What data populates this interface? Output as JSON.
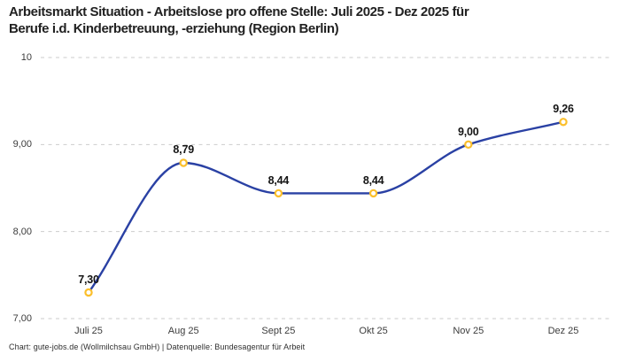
{
  "title": {
    "line1": "Arbeitsmarkt Situation - Arbeitslose pro offene Stelle: Juli 2025 - Dez 2025 für",
    "line2": "Berufe i.d. Kinderbetreuung, -erziehung (Region Berlin)",
    "full": "Arbeitsmarkt Situation - Arbeitslose pro offene Stelle: Juli 2025 - Dez 2025 für Berufe i.d. Kinderbetreuung, -erziehung (Region Berlin)"
  },
  "footer": "Chart: gute-jobs.de (Wollmilchsau GmbH) | Datenquelle: Bundesagentur für Arbeit",
  "chart_data": {
    "type": "line",
    "title": "Arbeitsmarkt Situation - Arbeitslose pro offene Stelle: Juli 2025 - Dez 2025 für Berufe i.d. Kinderbetreuung, -erziehung (Region Berlin)",
    "categories": [
      "Juli 25",
      "Aug 25",
      "Sept 25",
      "Okt 25",
      "Nov 25",
      "Dez 25"
    ],
    "values": [
      7.3,
      8.79,
      8.44,
      8.44,
      9.0,
      9.26
    ],
    "point_labels": [
      "7,30",
      "8,79",
      "8,44",
      "8,44",
      "9,00",
      "9,26"
    ],
    "yticks": [
      7,
      8,
      9,
      10
    ],
    "ytick_labels": [
      "7,00",
      "8,00",
      "9,00",
      "10"
    ],
    "ylim": [
      7,
      10
    ],
    "grid": "horizontal-dashed",
    "legend": "none",
    "curve": "smooth-monotone",
    "marker_style": "open-circle",
    "colors": {
      "line": "#2A41A4",
      "marker": "#FBBF2C",
      "marker_fill": "#FFFFFF",
      "grid": "#CBCBCB",
      "title_text": "#212121",
      "tick_text": "#3C3C3C",
      "label_text": "#141414"
    }
  }
}
